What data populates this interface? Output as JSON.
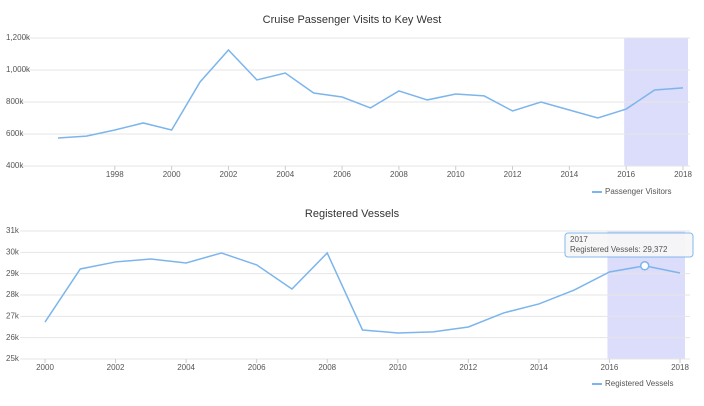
{
  "chart_data": [
    {
      "type": "line",
      "title": "Cruise Passenger Visits to Key West",
      "x": [
        1996,
        1997,
        1998,
        1999,
        2000,
        2001,
        2002,
        2003,
        2004,
        2005,
        2006,
        2007,
        2008,
        2009,
        2010,
        2011,
        2012,
        2013,
        2014,
        2015,
        2016,
        2017,
        2018
      ],
      "series": [
        {
          "name": "Passenger Visitors",
          "color": "#7cb5ec",
          "values": [
            575,
            587,
            625,
            669,
            625,
            925,
            1125,
            938,
            981,
            856,
            831,
            763,
            869,
            813,
            850,
            838,
            744,
            800,
            750,
            700,
            756,
            875,
            888
          ]
        }
      ],
      "xlim": [
        1996,
        2018
      ],
      "xticks": [
        1998,
        2000,
        2002,
        2004,
        2006,
        2008,
        2010,
        2012,
        2014,
        2016,
        2018
      ],
      "ylim": [
        400,
        1200
      ],
      "yticks": [
        {
          "value": 400,
          "label": "400k"
        },
        {
          "value": 600,
          "label": "600k"
        },
        {
          "value": 800,
          "label": "800k"
        },
        {
          "value": 1000,
          "label": "1,000k"
        },
        {
          "value": 1200,
          "label": "1,200k"
        }
      ],
      "highlight": [
        2016,
        2018
      ],
      "highlight_color": "#dcdcfb",
      "grid": true,
      "legend": "bottom-right"
    },
    {
      "type": "line",
      "title": "Registered Vessels",
      "x": [
        2000,
        2001,
        2002,
        2003,
        2004,
        2005,
        2006,
        2007,
        2008,
        2009,
        2010,
        2011,
        2012,
        2013,
        2014,
        2015,
        2016,
        2017,
        2018
      ],
      "series": [
        {
          "name": "Registered Vessels",
          "color": "#7cb5ec",
          "values": [
            26.73,
            29.22,
            29.55,
            29.69,
            29.5,
            29.97,
            29.41,
            28.28,
            29.97,
            26.36,
            26.22,
            26.27,
            26.5,
            27.16,
            27.58,
            28.23,
            29.08,
            29.37,
            29.03
          ]
        }
      ],
      "xlim": [
        2000,
        2018
      ],
      "xticks": [
        2000,
        2002,
        2004,
        2006,
        2008,
        2010,
        2012,
        2014,
        2016,
        2018
      ],
      "ylim": [
        25,
        31
      ],
      "yticks": [
        {
          "value": 25,
          "label": "25k"
        },
        {
          "value": 26,
          "label": "26k"
        },
        {
          "value": 27,
          "label": "27k"
        },
        {
          "value": 28,
          "label": "28k"
        },
        {
          "value": 29,
          "label": "29k"
        },
        {
          "value": 30,
          "label": "30k"
        },
        {
          "value": 31,
          "label": "31k"
        }
      ],
      "highlight": [
        2016,
        2018
      ],
      "highlight_color": "#dcdcfb",
      "grid": true,
      "legend": "bottom-right",
      "tooltip": {
        "title": "2017",
        "text": "Registered Vessels: 29,372"
      }
    }
  ]
}
